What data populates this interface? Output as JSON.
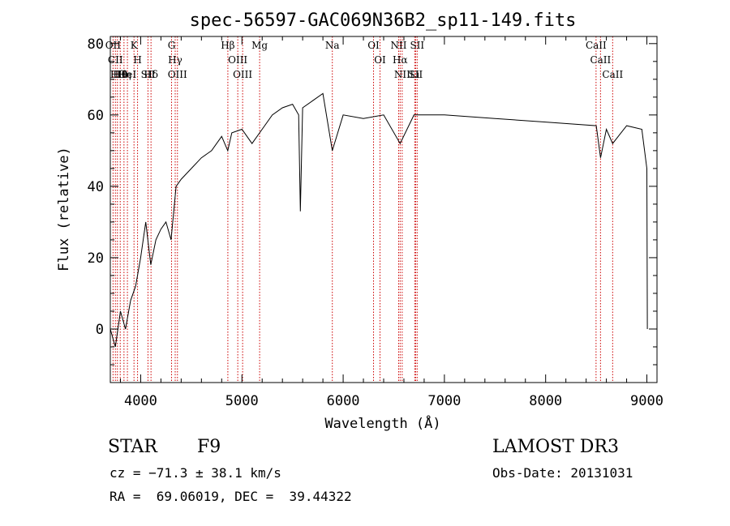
{
  "chart_data": {
    "type": "line",
    "title": "spec-56597-GAC069N36B2_sp11-149.fits",
    "xlabel": "Wavelength (Å)",
    "ylabel": "Flux (relative)",
    "xlim": [
      3700,
      9100
    ],
    "ylim": [
      -15,
      82
    ],
    "xticks": [
      "4000",
      "5000",
      "6000",
      "7000",
      "8000",
      "9000"
    ],
    "yticks": [
      "0",
      "20",
      "40",
      "60",
      "80"
    ],
    "series": [
      {
        "x": [
          3700,
          3750,
          3800,
          3850,
          3900,
          3950,
          4000,
          4050,
          4100,
          4150,
          4200,
          4250,
          4300,
          4350,
          4400,
          4500,
          4600,
          4700,
          4800,
          4860,
          4900,
          5000,
          5100,
          5200,
          5300,
          5400,
          5500,
          5560,
          5577,
          5600,
          5700,
          5800,
          5893,
          6000,
          6200,
          6400,
          6563,
          6700,
          7000,
          7500,
          8000,
          8500,
          8542,
          8600,
          8662,
          8800,
          8950,
          9000,
          9005
        ],
        "y": [
          0,
          -5,
          5,
          0,
          8,
          12,
          20,
          30,
          18,
          25,
          28,
          30,
          25,
          40,
          42,
          45,
          48,
          50,
          54,
          50,
          55,
          56,
          52,
          56,
          60,
          62,
          63,
          60,
          33,
          62,
          64,
          66,
          50,
          60,
          59,
          60,
          52,
          60,
          60,
          59,
          58,
          57,
          48,
          56,
          52,
          57,
          56,
          45,
          0
        ]
      }
    ],
    "lines": [
      {
        "w": 3727,
        "label": "OII"
      },
      {
        "w": 3750,
        "label": "CII"
      },
      {
        "w": 3770,
        "label": "Hθ"
      },
      {
        "w": 3798,
        "label": "Hθ"
      },
      {
        "w": 3835,
        "label": "Hη"
      },
      {
        "w": 3869,
        "label": "HeI"
      },
      {
        "w": 3934,
        "label": "K"
      },
      {
        "w": 3969,
        "label": "H"
      },
      {
        "w": 4072,
        "label": "SII"
      },
      {
        "w": 4102,
        "label": "Hδ"
      },
      {
        "w": 4305,
        "label": "G"
      },
      {
        "w": 4341,
        "label": "Hγ"
      },
      {
        "w": 4363,
        "label": "OIII"
      },
      {
        "w": 4861,
        "label": "Hβ"
      },
      {
        "w": 4959,
        "label": "OIII"
      },
      {
        "w": 5007,
        "label": "OIII"
      },
      {
        "w": 5175,
        "label": "Mg"
      },
      {
        "w": 5893,
        "label": "Na"
      },
      {
        "w": 6300,
        "label": "OI"
      },
      {
        "w": 6364,
        "label": "OI"
      },
      {
        "w": 6548,
        "label": "NII"
      },
      {
        "w": 6563,
        "label": "Hα"
      },
      {
        "w": 6583,
        "label": "NII"
      },
      {
        "w": 6707,
        "label": "Li"
      },
      {
        "w": 6716,
        "label": "SII"
      },
      {
        "w": 6731,
        "label": "SII"
      },
      {
        "w": 8498,
        "label": "CaII"
      },
      {
        "w": 8542,
        "label": "CaII"
      },
      {
        "w": 8662,
        "label": "CaII"
      }
    ]
  },
  "info": {
    "class": "STAR",
    "subclass": "F9",
    "survey": "LAMOST DR3",
    "cz": "cz = −71.3 ± 38.1 km/s",
    "obs_date": "Obs-Date: 20131031",
    "radec": "RA =  69.06019, DEC =  39.44322"
  }
}
